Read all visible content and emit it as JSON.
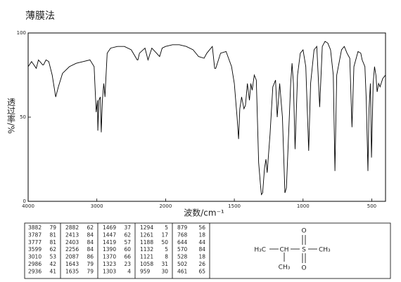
{
  "title": "薄膜法",
  "chart_data": {
    "type": "line",
    "xlabel": "波数/cm⁻¹",
    "ylabel": "透过率/%",
    "xlim": [
      4000,
      400
    ],
    "xticks": [
      4000,
      3000,
      2000,
      1500,
      1000,
      500
    ],
    "ylim": [
      0,
      100
    ],
    "yticks": [
      0,
      50,
      100
    ],
    "series": [
      {
        "color": "#000000",
        "x": [
          4000,
          3950,
          3882,
          3850,
          3787,
          3777,
          3740,
          3700,
          3650,
          3599,
          3560,
          3500,
          3400,
          3300,
          3200,
          3100,
          3040,
          3010,
          2990,
          2986,
          2970,
          2950,
          2936,
          2920,
          2900,
          2882,
          2870,
          2850,
          2800,
          2700,
          2600,
          2500,
          2413,
          2403,
          2380,
          2300,
          2256,
          2200,
          2087,
          2050,
          2000,
          1950,
          1900,
          1850,
          1800,
          1760,
          1720,
          1700,
          1660,
          1643,
          1635,
          1600,
          1560,
          1520,
          1500,
          1480,
          1469,
          1460,
          1447,
          1430,
          1419,
          1405,
          1390,
          1380,
          1370,
          1355,
          1340,
          1323,
          1310,
          1303,
          1294,
          1280,
          1270,
          1261,
          1240,
          1220,
          1200,
          1188,
          1170,
          1150,
          1132,
          1121,
          1110,
          1090,
          1080,
          1070,
          1058,
          1040,
          1020,
          1000,
          980,
          959,
          945,
          920,
          900,
          879,
          860,
          840,
          820,
          800,
          780,
          768,
          755,
          720,
          700,
          680,
          660,
          644,
          630,
          600,
          580,
          570,
          550,
          540,
          528,
          520,
          510,
          502,
          490,
          480,
          470,
          461,
          450,
          440,
          420,
          400
        ],
        "values": [
          80,
          83,
          79,
          84,
          81,
          81,
          84,
          83,
          75,
          62,
          68,
          76,
          80,
          82,
          83,
          84,
          80,
          53,
          60,
          42,
          60,
          62,
          41,
          60,
          70,
          62,
          72,
          88,
          91,
          92,
          92,
          90,
          84,
          84,
          88,
          91,
          84,
          91,
          86,
          91,
          92,
          93,
          93,
          92,
          90,
          86,
          85,
          88,
          92,
          79,
          79,
          88,
          89,
          80,
          70,
          50,
          37,
          55,
          62,
          55,
          57,
          70,
          60,
          70,
          66,
          75,
          72,
          23,
          10,
          4,
          5,
          20,
          25,
          17,
          40,
          68,
          72,
          50,
          70,
          50,
          5,
          8,
          30,
          70,
          82,
          70,
          31,
          75,
          88,
          90,
          80,
          30,
          70,
          90,
          92,
          56,
          92,
          95,
          94,
          90,
          75,
          18,
          75,
          90,
          92,
          88,
          85,
          44,
          80,
          89,
          88,
          84,
          80,
          60,
          18,
          55,
          70,
          26,
          70,
          80,
          75,
          65,
          70,
          68,
          73,
          75
        ]
      }
    ]
  },
  "peak_table": [
    [
      [
        3882,
        79
      ],
      [
        3787,
        81
      ],
      [
        3777,
        81
      ],
      [
        3599,
        62
      ],
      [
        3010,
        53
      ],
      [
        2986,
        42
      ],
      [
        2936,
        41
      ]
    ],
    [
      [
        2882,
        62
      ],
      [
        2413,
        84
      ],
      [
        2403,
        84
      ],
      [
        2256,
        84
      ],
      [
        2087,
        86
      ],
      [
        1643,
        79
      ],
      [
        1635,
        79
      ]
    ],
    [
      [
        1469,
        37
      ],
      [
        1447,
        62
      ],
      [
        1419,
        57
      ],
      [
        1390,
        60
      ],
      [
        1370,
        66
      ],
      [
        1323,
        23
      ],
      [
        1303,
        4
      ]
    ],
    [
      [
        1294,
        5
      ],
      [
        1261,
        17
      ],
      [
        1188,
        50
      ],
      [
        1132,
        5
      ],
      [
        1121,
        8
      ],
      [
        1058,
        31
      ],
      [
        959,
        30
      ]
    ],
    [
      [
        879,
        56
      ],
      [
        768,
        18
      ],
      [
        644,
        44
      ],
      [
        570,
        84
      ],
      [
        528,
        18
      ],
      [
        502,
        26
      ],
      [
        461,
        65
      ]
    ]
  ],
  "structure": {
    "left": "H₃C",
    "center": "CH",
    "sulfur": "S",
    "right": "CH₃",
    "branch": "CH₃",
    "oxygen_top": "O",
    "oxygen_bottom": "O"
  }
}
